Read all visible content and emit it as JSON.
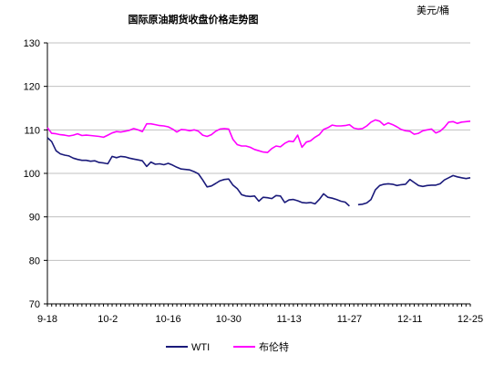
{
  "chart_data": {
    "type": "line",
    "title": "国际原油期货收盘价格走势图",
    "unit": "美元/桶",
    "ylim": [
      70,
      130
    ],
    "yticks": [
      70,
      80,
      90,
      100,
      110,
      120,
      130
    ],
    "x_labels": [
      "9-18",
      "10-2",
      "10-16",
      "10-30",
      "11-13",
      "11-27",
      "12-11",
      "12-25"
    ],
    "x_range": [
      0,
      98
    ],
    "x_label_positions": [
      0,
      14,
      28,
      42,
      56,
      70,
      84,
      98
    ],
    "legend": [
      "WTI",
      "布伦特"
    ],
    "series": [
      {
        "name": "WTI",
        "color": "#1a1a7a",
        "segments": [
          [
            [
              0,
              108.2
            ],
            [
              1,
              107.3
            ],
            [
              2,
              105.2
            ],
            [
              3,
              104.5
            ],
            [
              4,
              104.2
            ],
            [
              5,
              104.0
            ],
            [
              6,
              103.5
            ],
            [
              7,
              103.2
            ],
            [
              8,
              103.0
            ],
            [
              9,
              103.0
            ],
            [
              10,
              102.8
            ],
            [
              11,
              102.9
            ],
            [
              12,
              102.5
            ],
            [
              13,
              102.4
            ],
            [
              14,
              102.2
            ],
            [
              15,
              103.9
            ],
            [
              16,
              103.6
            ],
            [
              17,
              103.9
            ],
            [
              18,
              103.8
            ],
            [
              19,
              103.5
            ],
            [
              20,
              103.3
            ],
            [
              21,
              103.1
            ],
            [
              22,
              102.9
            ],
            [
              23,
              101.6
            ],
            [
              24,
              102.6
            ],
            [
              25,
              102.1
            ],
            [
              26,
              102.2
            ],
            [
              27,
              102.0
            ],
            [
              28,
              102.3
            ],
            [
              29,
              101.9
            ],
            [
              30,
              101.4
            ],
            [
              31,
              101.0
            ],
            [
              32,
              100.9
            ],
            [
              33,
              100.8
            ],
            [
              34,
              100.4
            ],
            [
              35,
              99.9
            ],
            [
              36,
              98.5
            ],
            [
              37,
              96.9
            ],
            [
              38,
              97.1
            ],
            [
              39,
              97.7
            ],
            [
              40,
              98.3
            ],
            [
              41,
              98.6
            ],
            [
              42,
              98.7
            ],
            [
              43,
              97.3
            ],
            [
              44,
              96.5
            ],
            [
              45,
              95.1
            ],
            [
              46,
              94.8
            ],
            [
              47,
              94.7
            ],
            [
              48,
              94.8
            ],
            [
              49,
              93.6
            ],
            [
              50,
              94.5
            ],
            [
              51,
              94.4
            ],
            [
              52,
              94.2
            ],
            [
              53,
              94.9
            ],
            [
              54,
              94.8
            ],
            [
              55,
              93.3
            ],
            [
              56,
              93.9
            ],
            [
              57,
              94.0
            ],
            [
              58,
              93.7
            ],
            [
              59,
              93.3
            ],
            [
              60,
              93.2
            ],
            [
              61,
              93.3
            ],
            [
              62,
              93.0
            ],
            [
              63,
              94.0
            ],
            [
              64,
              95.3
            ],
            [
              65,
              94.5
            ],
            [
              66,
              94.3
            ],
            [
              67,
              94.0
            ],
            [
              68,
              93.6
            ],
            [
              69,
              93.4
            ],
            [
              70,
              92.5
            ]
          ],
          [
            [
              72,
              92.8
            ],
            [
              73,
              92.9
            ],
            [
              74,
              93.2
            ],
            [
              75,
              94.0
            ],
            [
              76,
              96.2
            ],
            [
              77,
              97.2
            ],
            [
              78,
              97.5
            ],
            [
              79,
              97.6
            ],
            [
              80,
              97.5
            ],
            [
              81,
              97.2
            ],
            [
              82,
              97.4
            ],
            [
              83,
              97.5
            ],
            [
              84,
              98.6
            ],
            [
              85,
              97.9
            ],
            [
              86,
              97.2
            ],
            [
              87,
              97.0
            ],
            [
              88,
              97.2
            ],
            [
              89,
              97.3
            ],
            [
              90,
              97.3
            ],
            [
              91,
              97.6
            ],
            [
              92,
              98.5
            ],
            [
              93,
              99.0
            ],
            [
              94,
              99.5
            ],
            [
              95,
              99.2
            ],
            [
              96,
              99.0
            ],
            [
              97,
              98.8
            ],
            [
              98,
              99.0
            ]
          ]
        ]
      },
      {
        "name": "布伦特",
        "color": "#ff00ff",
        "segments": [
          [
            [
              0,
              110.5
            ],
            [
              1,
              109.2
            ],
            [
              2,
              109.1
            ],
            [
              3,
              108.9
            ],
            [
              4,
              108.8
            ],
            [
              5,
              108.6
            ],
            [
              6,
              108.8
            ],
            [
              7,
              109.1
            ],
            [
              8,
              108.7
            ],
            [
              9,
              108.8
            ],
            [
              10,
              108.7
            ],
            [
              11,
              108.6
            ],
            [
              12,
              108.5
            ],
            [
              13,
              108.3
            ],
            [
              14,
              108.8
            ],
            [
              15,
              109.3
            ],
            [
              16,
              109.6
            ],
            [
              17,
              109.5
            ],
            [
              18,
              109.7
            ],
            [
              19,
              109.9
            ],
            [
              20,
              110.3
            ],
            [
              21,
              110.0
            ],
            [
              22,
              109.6
            ],
            [
              23,
              111.4
            ],
            [
              24,
              111.4
            ],
            [
              25,
              111.2
            ],
            [
              26,
              111.0
            ],
            [
              27,
              110.9
            ],
            [
              28,
              110.7
            ],
            [
              29,
              110.2
            ],
            [
              30,
              109.5
            ],
            [
              31,
              110.1
            ],
            [
              32,
              110.0
            ],
            [
              33,
              109.8
            ],
            [
              34,
              110.0
            ],
            [
              35,
              109.7
            ],
            [
              36,
              108.8
            ],
            [
              37,
              108.5
            ],
            [
              38,
              108.9
            ],
            [
              39,
              109.7
            ],
            [
              40,
              110.2
            ],
            [
              41,
              110.3
            ],
            [
              42,
              110.2
            ],
            [
              43,
              107.8
            ],
            [
              44,
              106.6
            ],
            [
              45,
              106.3
            ],
            [
              46,
              106.3
            ],
            [
              47,
              106.0
            ],
            [
              48,
              105.5
            ],
            [
              49,
              105.2
            ],
            [
              50,
              104.9
            ],
            [
              51,
              104.8
            ],
            [
              52,
              105.7
            ],
            [
              53,
              106.3
            ],
            [
              54,
              106.1
            ],
            [
              55,
              106.9
            ],
            [
              56,
              107.4
            ],
            [
              57,
              107.3
            ],
            [
              58,
              108.8
            ],
            [
              59,
              106.0
            ],
            [
              60,
              107.2
            ],
            [
              61,
              107.5
            ],
            [
              62,
              108.3
            ],
            [
              63,
              108.9
            ],
            [
              64,
              110.1
            ],
            [
              65,
              110.5
            ],
            [
              66,
              111.1
            ],
            [
              67,
              110.9
            ],
            [
              68,
              110.9
            ],
            [
              69,
              111.0
            ],
            [
              70,
              111.2
            ],
            [
              71,
              110.4
            ],
            [
              72,
              110.2
            ],
            [
              73,
              110.3
            ],
            [
              74,
              110.9
            ],
            [
              75,
              111.8
            ],
            [
              76,
              112.3
            ],
            [
              77,
              112.0
            ],
            [
              78,
              111.1
            ],
            [
              79,
              111.6
            ],
            [
              80,
              111.2
            ],
            [
              81,
              110.7
            ],
            [
              82,
              110.1
            ],
            [
              83,
              109.8
            ],
            [
              84,
              109.7
            ],
            [
              85,
              109.0
            ],
            [
              86,
              109.2
            ],
            [
              87,
              109.8
            ],
            [
              88,
              110.0
            ],
            [
              89,
              110.2
            ],
            [
              90,
              109.3
            ],
            [
              91,
              109.7
            ],
            [
              92,
              110.6
            ],
            [
              93,
              111.8
            ],
            [
              94,
              111.9
            ],
            [
              95,
              111.5
            ],
            [
              96,
              111.8
            ],
            [
              97,
              111.9
            ],
            [
              98,
              112.0
            ]
          ]
        ]
      }
    ]
  }
}
